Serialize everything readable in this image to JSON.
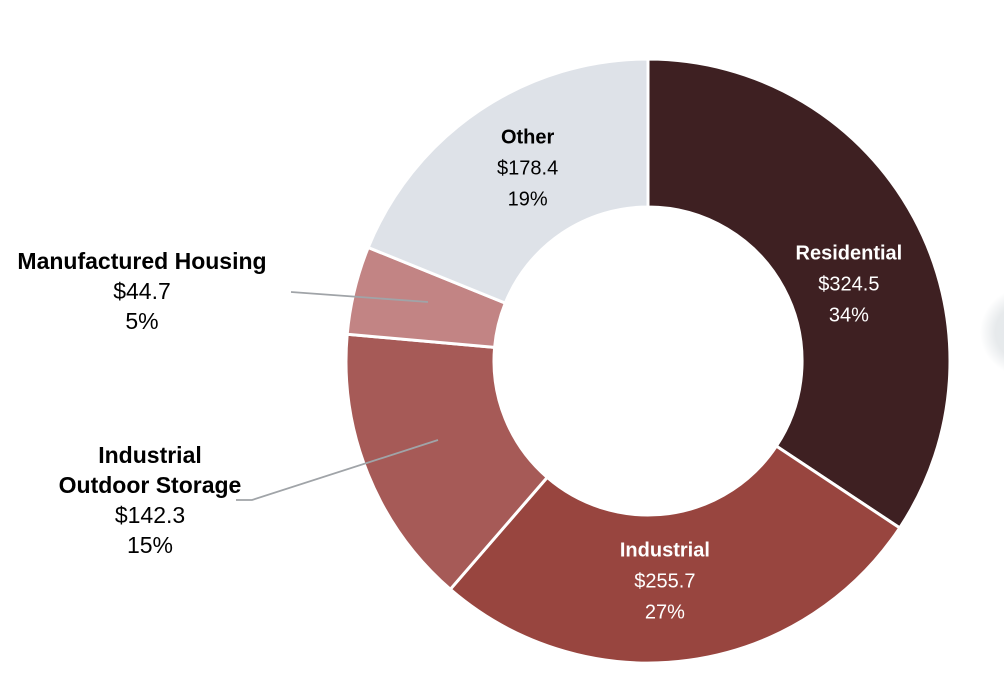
{
  "chart_data": {
    "type": "pie",
    "subtype": "donut",
    "title": "",
    "legend": "none",
    "direction": "clockwise",
    "start_angle_deg": 0,
    "donut_hole_ratio": 0.51,
    "border_color": "#FFFFFF",
    "leader_line_color": "#A0A4A8",
    "slices": [
      {
        "id": "residential",
        "label": "Residential",
        "label_lines": [
          "Residential"
        ],
        "value": 324.5,
        "value_label": "$324.5",
        "pct": 34,
        "pct_label": "34%",
        "color": "#3E2022",
        "text_color": "#FFFFFF",
        "placement": "inside"
      },
      {
        "id": "industrial",
        "label": "Industrial",
        "label_lines": [
          "Industrial"
        ],
        "value": 255.7,
        "value_label": "$255.7",
        "pct": 27,
        "pct_label": "27%",
        "color": "#98453F",
        "text_color": "#FFFFFF",
        "placement": "inside"
      },
      {
        "id": "industrial-outdoor-storage",
        "label": "Industrial Outdoor Storage",
        "label_lines": [
          "Industrial",
          "Outdoor Storage"
        ],
        "value": 142.3,
        "value_label": "$142.3",
        "pct": 15,
        "pct_label": "15%",
        "color": "#A65A57",
        "text_color": "#000000",
        "placement": "outside"
      },
      {
        "id": "manufactured-housing",
        "label": "Manufactured Housing",
        "label_lines": [
          "Manufactured Housing"
        ],
        "value": 44.7,
        "value_label": "$44.7",
        "pct": 5,
        "pct_label": "5%",
        "color": "#C28484",
        "text_color": "#000000",
        "placement": "outside"
      },
      {
        "id": "other",
        "label": "Other",
        "label_lines": [
          "Other"
        ],
        "value": 178.4,
        "value_label": "$178.4",
        "pct": 19,
        "pct_label": "19%",
        "color": "#DEE2E8",
        "text_color": "#000000",
        "placement": "inside"
      }
    ]
  }
}
